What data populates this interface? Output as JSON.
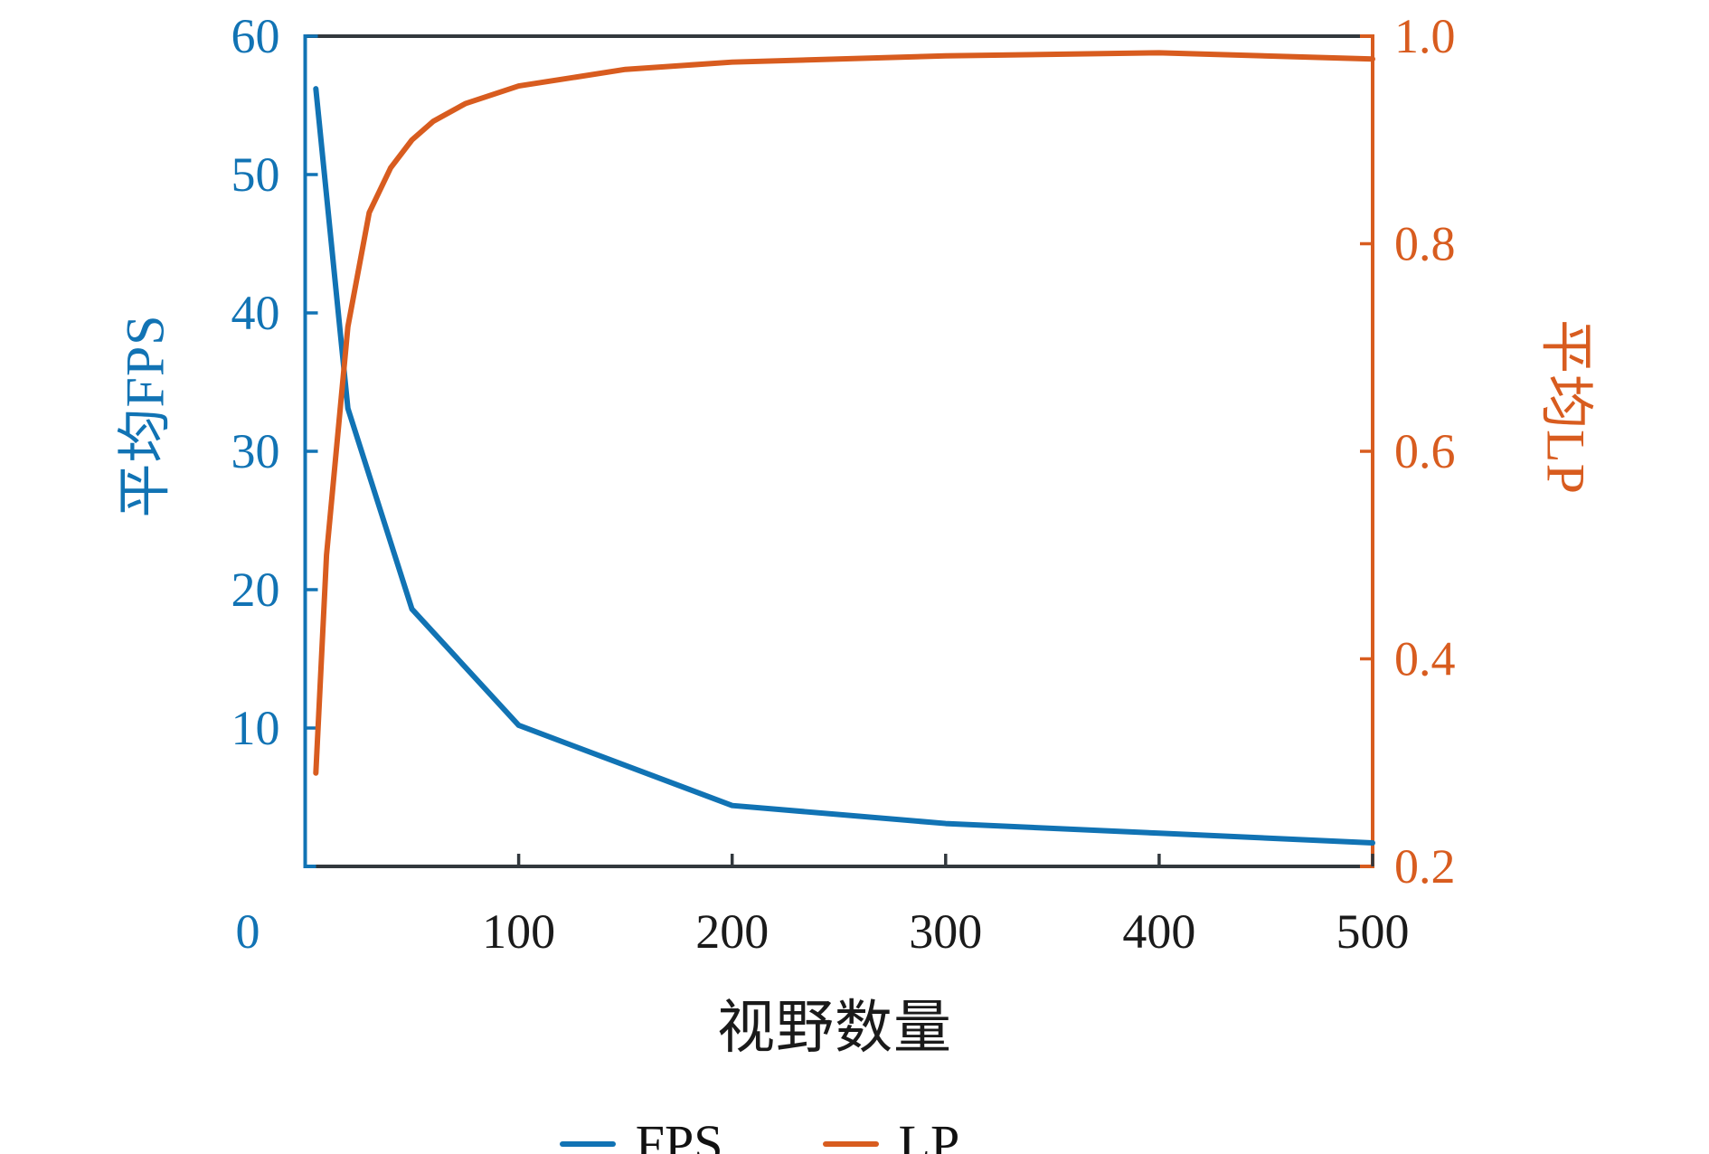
{
  "chart_data": {
    "type": "line",
    "title": "",
    "xlabel": "视野数量",
    "ylabel_left": "平均FPS",
    "ylabel_right": "平均LP",
    "grid": false,
    "x_axis": {
      "min": 0,
      "max": 500,
      "tick_values": [
        100,
        200,
        300,
        400,
        500
      ],
      "tick_labels": [
        "100",
        "200",
        "300",
        "400",
        "500"
      ],
      "origin_label": "0"
    },
    "y_axis_left": {
      "min": 0,
      "max": 60,
      "tick_values": [
        10,
        20,
        30,
        40,
        50,
        60
      ],
      "tick_labels": [
        "10",
        "20",
        "30",
        "40",
        "50",
        "60"
      ],
      "color": "#1173b4"
    },
    "y_axis_right": {
      "min": 0.2,
      "max": 1.0,
      "tick_values": [
        0.2,
        0.4,
        0.6,
        0.8,
        1.0
      ],
      "tick_labels": [
        "0.2",
        "0.4",
        "0.6",
        "0.8",
        "1.0"
      ],
      "color": "#d85c1f"
    },
    "series": [
      {
        "name": "FPS",
        "axis": "left",
        "color": "#1173b4",
        "x": [
          5,
          20,
          50,
          100,
          200,
          300,
          400,
          500
        ],
        "y": [
          56.2,
          33.1,
          18.6,
          10.2,
          4.4,
          3.1,
          2.4,
          1.7
        ]
      },
      {
        "name": "LP",
        "axis": "right",
        "color": "#d85c1f",
        "x": [
          5,
          10,
          20,
          30,
          40,
          50,
          60,
          75,
          100,
          150,
          200,
          300,
          400,
          500
        ],
        "y": [
          0.29,
          0.5,
          0.72,
          0.83,
          0.873,
          0.9,
          0.918,
          0.935,
          0.952,
          0.968,
          0.975,
          0.981,
          0.984,
          0.978
        ]
      }
    ],
    "legend": {
      "position": "bottom-center",
      "entries": [
        "FPS",
        "LP"
      ]
    }
  },
  "colors": {
    "spine_dark": "#32383d",
    "text": "#1a1a1a",
    "background": "#ffffff"
  }
}
